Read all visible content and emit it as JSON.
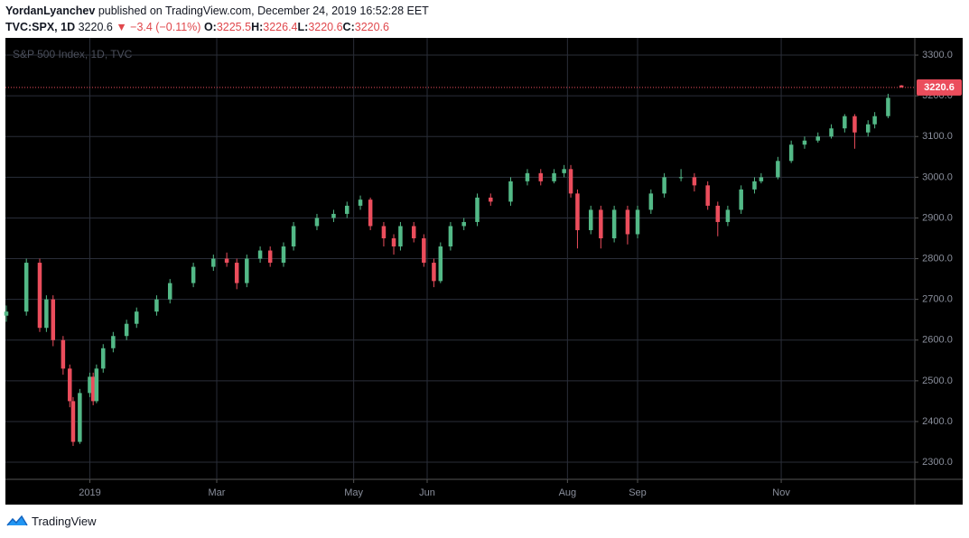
{
  "header": {
    "author": "YordanLyanchev",
    "published": "published on TradingView.com, December 24, 2019 16:52:28 EET",
    "symbol": "TVC:SPX, 1D",
    "last": "3220.6",
    "change": "▼ −3.4 (−0.11%)",
    "ohlc": [
      {
        "label": "O:",
        "value": "3225.5"
      },
      {
        "label": "H:",
        "value": "3226.4"
      },
      {
        "label": "L:",
        "value": "3220.6"
      },
      {
        "label": "C:",
        "value": "3220.6"
      }
    ]
  },
  "footer": {
    "brand": "TradingView"
  },
  "chart_data": {
    "type": "candlestick",
    "title": "S&P 500 Index, 1D, TVC",
    "up_color": "#53b987",
    "down_color": "#eb4d5c",
    "grid": true,
    "xlim": [
      0,
      272
    ],
    "xticks": [
      {
        "value": 25,
        "label": "2019"
      },
      {
        "value": 63,
        "label": "Mar"
      },
      {
        "value": 104,
        "label": "May"
      },
      {
        "value": 126,
        "label": "Jun"
      },
      {
        "value": 168,
        "label": "Aug"
      },
      {
        "value": 189,
        "label": "Sep"
      },
      {
        "value": 232,
        "label": "Nov"
      }
    ],
    "ylim": [
      2258,
      3340
    ],
    "yticks": [
      {
        "value": 2300,
        "label": "2300.0"
      },
      {
        "value": 2400,
        "label": "2400.0"
      },
      {
        "value": 2500,
        "label": "2500.0"
      },
      {
        "value": 2600,
        "label": "2600.0"
      },
      {
        "value": 2700,
        "label": "2700.0"
      },
      {
        "value": 2800,
        "label": "2800.0"
      },
      {
        "value": 2900,
        "label": "2900.0"
      },
      {
        "value": 3000,
        "label": "3000.0"
      },
      {
        "value": 3100,
        "label": "3100.0"
      },
      {
        "value": 3200,
        "label": "3200.0"
      },
      {
        "value": 3300,
        "label": "3300.0"
      }
    ],
    "x": [
      0,
      6,
      10,
      12,
      14,
      17,
      19,
      20,
      22,
      25,
      26,
      27,
      29,
      32,
      36,
      39,
      45,
      49,
      56,
      62,
      66,
      69,
      72,
      76,
      79,
      83,
      86,
      93,
      98,
      102,
      106,
      109,
      113,
      116,
      118,
      122,
      125,
      128,
      130,
      133,
      137,
      141,
      145,
      151,
      156,
      160,
      164,
      167,
      169,
      171,
      175,
      178,
      182,
      186,
      189,
      193,
      197,
      202,
      206,
      210,
      213,
      216,
      220,
      224,
      226,
      231,
      235,
      239,
      243,
      247,
      251,
      254,
      258,
      260,
      264,
      268
    ],
    "open": [
      2660,
      2670,
      2790,
      2630,
      2700,
      2600,
      2530,
      2450,
      2350,
      2470,
      2510,
      2450,
      2530,
      2580,
      2610,
      2640,
      2670,
      2700,
      2740,
      2780,
      2800,
      2790,
      2740,
      2800,
      2820,
      2790,
      2830,
      2880,
      2900,
      2910,
      2930,
      2945,
      2880,
      2850,
      2830,
      2880,
      2850,
      2790,
      2745,
      2830,
      2880,
      2890,
      2950,
      2940,
      2990,
      3010,
      2990,
      3010,
      3020,
      2960,
      2870,
      2920,
      2850,
      2920,
      2860,
      2920,
      2960,
      3000,
      3000,
      2980,
      2930,
      2890,
      2920,
      2970,
      2990,
      3000,
      3040,
      3080,
      3090,
      3100,
      3120,
      3150,
      3110,
      3130,
      3150,
      3225.5
    ],
    "high": [
      2685,
      2800,
      2800,
      2710,
      2710,
      2610,
      2540,
      2460,
      2480,
      2520,
      2520,
      2540,
      2590,
      2620,
      2650,
      2680,
      2710,
      2750,
      2790,
      2810,
      2815,
      2800,
      2810,
      2830,
      2830,
      2840,
      2890,
      2910,
      2920,
      2940,
      2955,
      2950,
      2890,
      2860,
      2890,
      2890,
      2860,
      2800,
      2840,
      2890,
      2900,
      2960,
      2960,
      3000,
      3020,
      3020,
      3020,
      3030,
      3030,
      2970,
      2930,
      2930,
      2930,
      2930,
      2930,
      2970,
      3010,
      3020,
      3010,
      2990,
      2940,
      2930,
      2980,
      3000,
      3010,
      3050,
      3090,
      3100,
      3110,
      3130,
      3155,
      3155,
      3140,
      3160,
      3205,
      3226.4
    ],
    "low": [
      2645,
      2660,
      2620,
      2620,
      2585,
      2515,
      2435,
      2340,
      2345,
      2460,
      2440,
      2445,
      2520,
      2570,
      2600,
      2630,
      2660,
      2690,
      2730,
      2770,
      2780,
      2725,
      2730,
      2790,
      2780,
      2780,
      2820,
      2870,
      2890,
      2900,
      2920,
      2870,
      2830,
      2810,
      2820,
      2840,
      2780,
      2730,
      2740,
      2820,
      2870,
      2880,
      2930,
      2930,
      2980,
      2980,
      2985,
      3000,
      2950,
      2825,
      2860,
      2825,
      2840,
      2835,
      2850,
      2910,
      2950,
      2990,
      2965,
      2920,
      2855,
      2880,
      2910,
      2960,
      2985,
      2995,
      3035,
      3070,
      3085,
      3095,
      3110,
      3070,
      3100,
      3120,
      3145,
      3220.6
    ],
    "close": [
      2670,
      2790,
      2630,
      2700,
      2600,
      2530,
      2450,
      2350,
      2470,
      2510,
      2450,
      2530,
      2580,
      2610,
      2640,
      2670,
      2700,
      2740,
      2780,
      2800,
      2790,
      2740,
      2800,
      2820,
      2790,
      2830,
      2880,
      2900,
      2910,
      2930,
      2945,
      2880,
      2850,
      2830,
      2880,
      2850,
      2790,
      2745,
      2830,
      2880,
      2890,
      2950,
      2940,
      2990,
      3010,
      2990,
      3010,
      3020,
      2960,
      2870,
      2920,
      2850,
      2920,
      2860,
      2920,
      2960,
      3000,
      3000,
      2980,
      2930,
      2890,
      2920,
      2970,
      2990,
      3000,
      3040,
      3080,
      3090,
      3100,
      3120,
      3150,
      3110,
      3130,
      3150,
      3195,
      3220.6
    ]
  }
}
